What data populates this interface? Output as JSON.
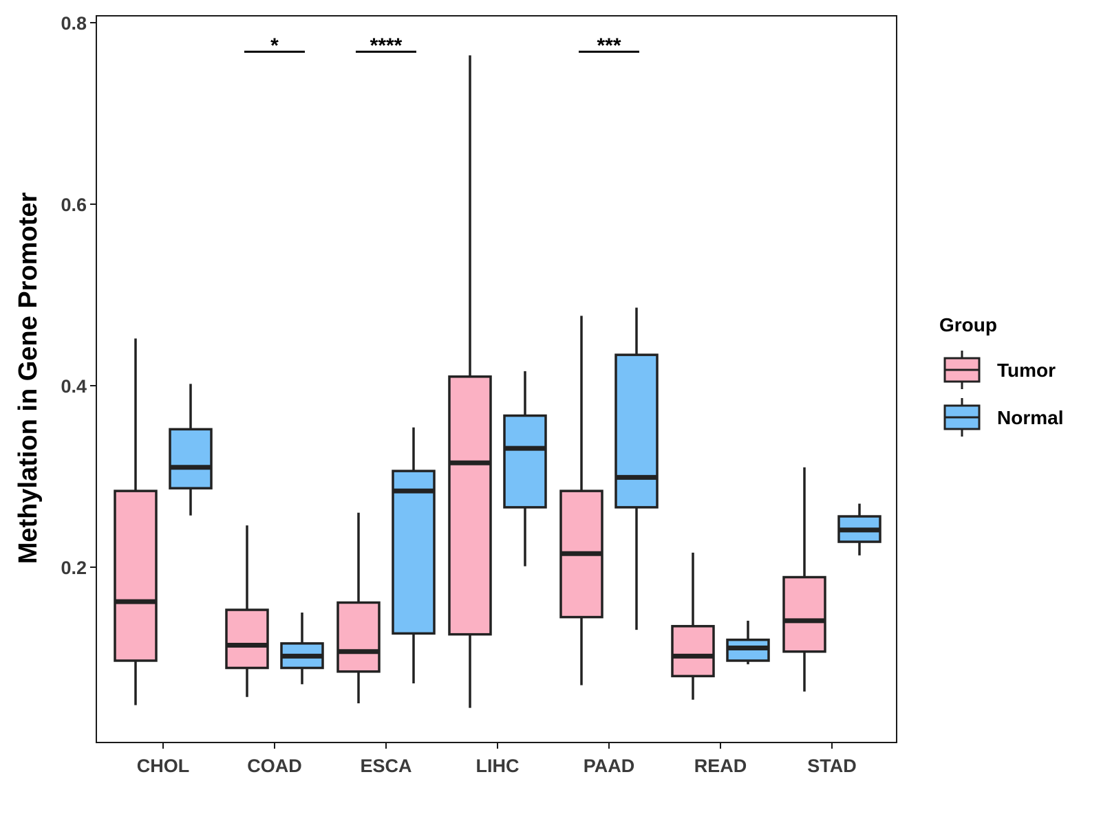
{
  "chart_data": {
    "type": "boxplot",
    "title": "",
    "xlabel": "",
    "ylabel": "Methylation in Gene Promoter",
    "ylim": [
      0.01,
      0.81
    ],
    "yticks": [
      0.2,
      0.4,
      0.6,
      0.8
    ],
    "ytick_labels": [
      "0.2",
      "0.4",
      "0.6",
      "0.8"
    ],
    "categories": [
      "CHOL",
      "COAD",
      "ESCA",
      "LIHC",
      "PAAD",
      "READ",
      "STAD"
    ],
    "legend": {
      "title": "Group",
      "position": "right",
      "entries": [
        {
          "name": "Tumor",
          "color": "#fbb1c3"
        },
        {
          "name": "Normal",
          "color": "#78c1f8"
        }
      ]
    },
    "series": [
      {
        "name": "Tumor",
        "color": "#fbb1c3",
        "boxes": [
          {
            "category": "CHOL",
            "min": 0.048,
            "q1": 0.097,
            "median": 0.162,
            "q3": 0.284,
            "max": 0.452
          },
          {
            "category": "COAD",
            "min": 0.057,
            "q1": 0.089,
            "median": 0.114,
            "q3": 0.153,
            "max": 0.246
          },
          {
            "category": "ESCA",
            "min": 0.05,
            "q1": 0.085,
            "median": 0.107,
            "q3": 0.161,
            "max": 0.26
          },
          {
            "category": "LIHC",
            "min": 0.045,
            "q1": 0.126,
            "median": 0.315,
            "q3": 0.41,
            "max": 0.764
          },
          {
            "category": "PAAD",
            "min": 0.07,
            "q1": 0.145,
            "median": 0.215,
            "q3": 0.284,
            "max": 0.477
          },
          {
            "category": "READ",
            "min": 0.054,
            "q1": 0.08,
            "median": 0.102,
            "q3": 0.135,
            "max": 0.216
          },
          {
            "category": "STAD",
            "min": 0.063,
            "q1": 0.107,
            "median": 0.141,
            "q3": 0.189,
            "max": 0.31
          }
        ]
      },
      {
        "name": "Normal",
        "color": "#78c1f8",
        "boxes": [
          {
            "category": "CHOL",
            "min": 0.257,
            "q1": 0.287,
            "median": 0.31,
            "q3": 0.352,
            "max": 0.402
          },
          {
            "category": "COAD",
            "min": 0.071,
            "q1": 0.089,
            "median": 0.102,
            "q3": 0.116,
            "max": 0.15
          },
          {
            "category": "ESCA",
            "min": 0.072,
            "q1": 0.127,
            "median": 0.284,
            "q3": 0.306,
            "max": 0.354
          },
          {
            "category": "LIHC",
            "min": 0.201,
            "q1": 0.266,
            "median": 0.331,
            "q3": 0.367,
            "max": 0.416
          },
          {
            "category": "PAAD",
            "min": 0.131,
            "q1": 0.266,
            "median": 0.299,
            "q3": 0.434,
            "max": 0.486
          },
          {
            "category": "READ",
            "min": 0.093,
            "q1": 0.097,
            "median": 0.111,
            "q3": 0.12,
            "max": 0.141
          },
          {
            "category": "STAD",
            "min": 0.213,
            "q1": 0.228,
            "median": 0.241,
            "q3": 0.256,
            "max": 0.27
          }
        ]
      }
    ],
    "annotations": [
      {
        "category": "COAD",
        "label": "*",
        "y": 0.768
      },
      {
        "category": "ESCA",
        "label": "****",
        "y": 0.768
      },
      {
        "category": "PAAD",
        "label": "***",
        "y": 0.768
      }
    ]
  }
}
